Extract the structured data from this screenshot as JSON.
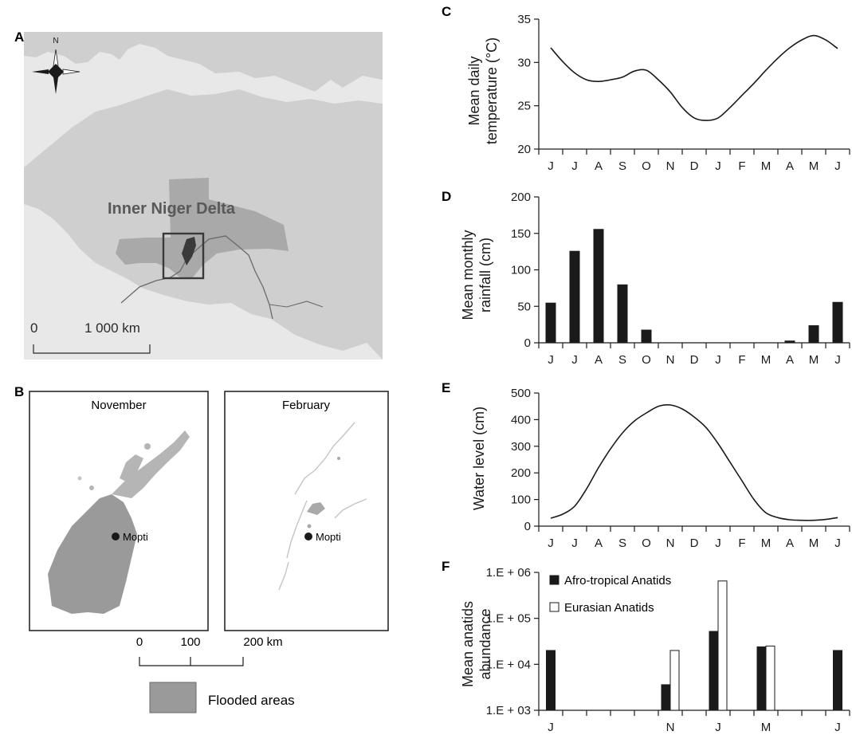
{
  "panels": {
    "A": {
      "label": "A",
      "north": "N",
      "region_label": "Inner Niger Delta",
      "scale_zero": "0",
      "scale_label": "1 000 km"
    },
    "B": {
      "label": "B",
      "map1_title": "November",
      "map2_title": "February",
      "city_label": "Mopti",
      "scale_ticks": [
        "0",
        "100",
        "200 km"
      ],
      "legend_label": "Flooded areas"
    },
    "C": {
      "label": "C"
    },
    "D": {
      "label": "D"
    },
    "E": {
      "label": "E"
    },
    "F": {
      "label": "F"
    }
  },
  "colors": {
    "land": "#cfcfcf",
    "sea": "#e8e8e8",
    "mali": "#a9a9a9",
    "flooded": "#9a9a9a",
    "bar_dark": "#1a1a1a",
    "bar_light": "#ffffff"
  },
  "chart_data": [
    {
      "id": "C",
      "type": "line",
      "ylabel_lines": [
        "Mean daily",
        "temperature (°C)"
      ],
      "months": [
        "J",
        "J",
        "A",
        "S",
        "O",
        "N",
        "D",
        "J",
        "F",
        "M",
        "A",
        "M",
        "J"
      ],
      "x": [
        0,
        0.5,
        1,
        1.5,
        2,
        2.5,
        3,
        3.5,
        4,
        4.5,
        5,
        5.5,
        6,
        6.5,
        7,
        7.5,
        8,
        8.5,
        9,
        9.5,
        10,
        10.5,
        11,
        11.5,
        12
      ],
      "y": [
        31.7,
        30.1,
        28.8,
        28,
        27.8,
        28,
        28.3,
        29,
        29.1,
        28,
        26.6,
        24.8,
        23.6,
        23.3,
        23.6,
        24.8,
        26.2,
        27.6,
        29.1,
        30.5,
        31.7,
        32.6,
        33.1,
        32.6,
        31.6
      ],
      "ylim": [
        20,
        35
      ],
      "yticks": [
        20,
        25,
        30,
        35
      ]
    },
    {
      "id": "D",
      "type": "bar",
      "ylabel_lines": [
        "Mean monthly",
        "rainfall (cm)"
      ],
      "categories": [
        "J",
        "J",
        "A",
        "S",
        "O",
        "N",
        "D",
        "J",
        "F",
        "M",
        "A",
        "M",
        "J"
      ],
      "values": [
        55,
        126,
        156,
        80,
        18,
        0,
        0,
        0,
        0,
        0,
        3,
        24,
        56
      ],
      "ylim": [
        0,
        200
      ],
      "yticks": [
        0,
        50,
        100,
        150,
        200
      ]
    },
    {
      "id": "E",
      "type": "line",
      "ylabel_lines": [
        "Water level (cm)"
      ],
      "months": [
        "J",
        "J",
        "A",
        "S",
        "O",
        "N",
        "D",
        "J",
        "F",
        "M",
        "A",
        "M",
        "J"
      ],
      "x": [
        0,
        0.5,
        1,
        1.5,
        2,
        2.5,
        3,
        3.5,
        4,
        4.5,
        5,
        5.5,
        6,
        6.5,
        7,
        7.5,
        8,
        8.5,
        9,
        9.5,
        10,
        10.5,
        11,
        11.5,
        12
      ],
      "y": [
        30,
        45,
        75,
        140,
        220,
        290,
        350,
        395,
        425,
        450,
        455,
        440,
        410,
        370,
        310,
        240,
        170,
        100,
        50,
        32,
        24,
        22,
        22,
        25,
        32
      ],
      "ylim": [
        0,
        500
      ],
      "yticks": [
        0,
        100,
        200,
        300,
        400,
        500
      ]
    },
    {
      "id": "F",
      "type": "bar",
      "ylabel_lines": [
        "Mean anatids",
        "abundance"
      ],
      "scale": "log",
      "categories": [
        "J",
        "N",
        "J",
        "M",
        "J"
      ],
      "month_index": [
        0,
        5,
        7,
        9,
        12
      ],
      "series": [
        {
          "name": "Afro-tropical Anatids",
          "values": [
            20000,
            3600,
            52000,
            24000,
            20000
          ]
        },
        {
          "name": "Eurasian Anatids",
          "values": [
            null,
            20000,
            650000,
            25000,
            null
          ]
        }
      ],
      "ytick_labels": [
        "1.E + 03",
        "1.E + 04",
        "1.E + 05",
        "1.E + 06"
      ],
      "ylim": [
        1000,
        1000000
      ],
      "legend_position": "top-left"
    }
  ]
}
